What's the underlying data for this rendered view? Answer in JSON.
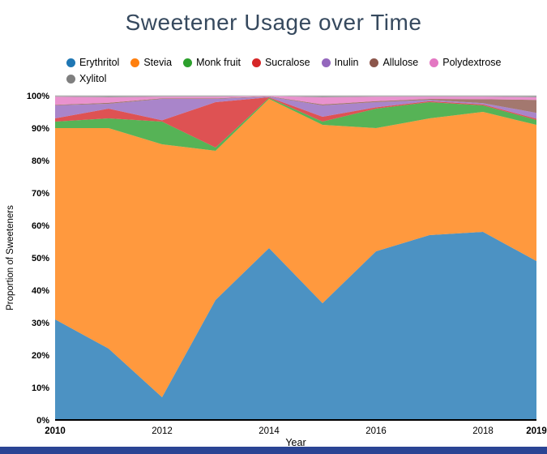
{
  "chart_data": {
    "type": "area",
    "stacked": true,
    "normalized_percent": true,
    "title": "Sweetener Usage over Time",
    "xlabel": "Year",
    "ylabel": "Proportion of Sweeteners",
    "x": [
      2010,
      2011,
      2012,
      2013,
      2014,
      2015,
      2016,
      2017,
      2018,
      2019
    ],
    "x_ticks": [
      "2010",
      "2012",
      "2014",
      "2016",
      "2018",
      "2019"
    ],
    "y_tick_labels": [
      "0%",
      "10%",
      "20%",
      "30%",
      "40%",
      "50%",
      "60%",
      "70%",
      "80%",
      "90%",
      "100%"
    ],
    "ylim": [
      0,
      100
    ],
    "grid": false,
    "legend_position": "top",
    "series": [
      {
        "name": "Erythritol",
        "color": "#1f77b4",
        "values": [
          31,
          22,
          7,
          37,
          53,
          36,
          52,
          57,
          58,
          49
        ]
      },
      {
        "name": "Stevia",
        "color": "#ff7f0e",
        "values": [
          59,
          68,
          78,
          46,
          46,
          55,
          38,
          36,
          37,
          42
        ]
      },
      {
        "name": "Monk fruit",
        "color": "#2ca02c",
        "values": [
          2,
          3,
          7,
          1,
          0.3,
          1,
          6,
          5,
          2,
          1.5
        ]
      },
      {
        "name": "Sucralose",
        "color": "#d62728",
        "values": [
          1,
          3,
          0.4,
          14,
          0.2,
          1.5,
          0.4,
          0.3,
          0.3,
          0.4
        ]
      },
      {
        "name": "Inulin",
        "color": "#9467bd",
        "values": [
          4,
          1.5,
          6.6,
          1,
          0.2,
          3.5,
          1.6,
          0.4,
          0.4,
          1.8
        ]
      },
      {
        "name": "Allulose",
        "color": "#8c564b",
        "values": [
          0.2,
          0.3,
          0.2,
          0.2,
          0.1,
          0.3,
          0.3,
          0.3,
          1.2,
          4
        ]
      },
      {
        "name": "Polydextrose",
        "color": "#e377c2",
        "values": [
          2.5,
          1.7,
          0.5,
          0.5,
          0.1,
          2.2,
          1.4,
          0.7,
          0.8,
          0.8
        ]
      },
      {
        "name": "Xylitol",
        "color": "#7f7f7f",
        "values": [
          0.3,
          0.5,
          0.3,
          0.3,
          0.1,
          0.5,
          0.3,
          0.3,
          0.3,
          0.5
        ]
      }
    ]
  },
  "colors": {
    "title": "#36495e",
    "axis_text": "#000000",
    "axis_line": "#000000",
    "top_gridline": "#cccccc",
    "bottom_bar": "#2a4494"
  }
}
